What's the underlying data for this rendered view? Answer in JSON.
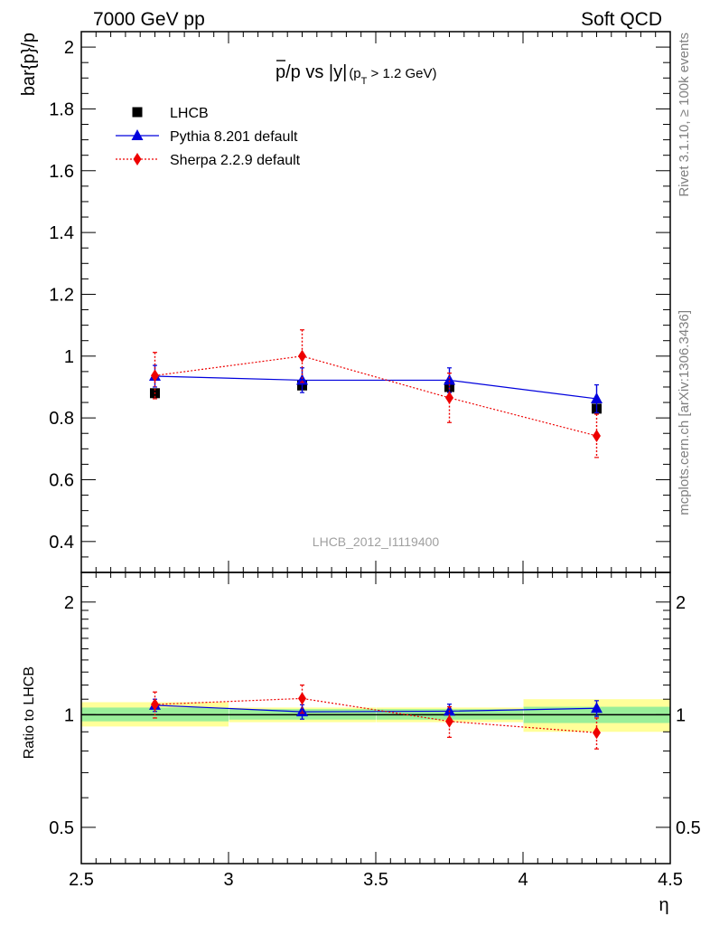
{
  "header": {
    "left": "7000 GeV pp",
    "right": "Soft QCD"
  },
  "side_labels": {
    "rivet": "Rivet 3.1.10, ≥ 100k events",
    "mcplots": "mcplots.cern.ch [arXiv:1306.3436]"
  },
  "watermark": "LHCB_2012_I1119400",
  "chart_data": [
    {
      "type": "scatter",
      "title": "p̅/p vs |y| (p_T > 1.2 GeV)",
      "title_parts": {
        "main": "p/p vs |y|",
        "sub_open": "(p",
        "sub_index": "T",
        "sub_close": " > 1.2 GeV)"
      },
      "ylabel": "bar{p}/p",
      "xlim": [
        2.5,
        4.5
      ],
      "ylim": [
        0.3,
        2.05
      ],
      "yticks": [
        0.4,
        0.6,
        0.8,
        1,
        1.2,
        1.4,
        1.6,
        1.8,
        2
      ],
      "ytick_labels": [
        "0.4",
        "0.6",
        "0.8",
        "1",
        "1.2",
        "1.4",
        "1.6",
        "1.8",
        "2"
      ],
      "legend_position": "top-left",
      "series": [
        {
          "name": "LHCB",
          "color": "#000000",
          "marker": "square",
          "x": [
            2.75,
            3.25,
            3.75,
            4.25
          ],
          "y": [
            0.88,
            0.905,
            0.9,
            0.83
          ],
          "yerr": [
            0.012,
            0.012,
            0.012,
            0.012
          ]
        },
        {
          "name": "Pythia 8.201 default",
          "color": "#0000dd",
          "marker": "triangle",
          "line": "solid",
          "x": [
            2.75,
            3.25,
            3.75,
            4.25
          ],
          "y": [
            0.935,
            0.922,
            0.922,
            0.862
          ],
          "yerr": [
            0.035,
            0.04,
            0.04,
            0.045
          ]
        },
        {
          "name": "Sherpa 2.2.9 default",
          "color": "#ee0000",
          "marker": "diamond",
          "line": "dotted",
          "x": [
            2.75,
            3.25,
            3.75,
            4.25
          ],
          "y": [
            0.937,
            1.0,
            0.865,
            0.742
          ],
          "yerr": [
            0.075,
            0.085,
            0.08,
            0.07
          ]
        }
      ]
    },
    {
      "type": "scatter",
      "ylabel": "Ratio to LHCB",
      "xlabel": "η",
      "xlim": [
        2.5,
        4.5
      ],
      "ylim": [
        0.4,
        2.4
      ],
      "log_y": true,
      "yticks": [
        0.5,
        1,
        2
      ],
      "ytick_labels": [
        "0.5",
        "1",
        "2"
      ],
      "xticks": [
        2.5,
        3,
        3.5,
        4,
        4.5
      ],
      "xtick_labels": [
        "2.5",
        "3",
        "3.5",
        "4",
        "4.5"
      ],
      "bands": [
        {
          "x0": 2.5,
          "x1": 3.0,
          "yellow": [
            0.93,
            1.08
          ],
          "green": [
            0.96,
            1.045
          ]
        },
        {
          "x0": 3.0,
          "x1": 3.5,
          "yellow": [
            0.955,
            1.045
          ],
          "green": [
            0.97,
            1.035
          ]
        },
        {
          "x0": 3.5,
          "x1": 4.0,
          "yellow": [
            0.955,
            1.045
          ],
          "green": [
            0.97,
            1.035
          ]
        },
        {
          "x0": 4.0,
          "x1": 4.5,
          "yellow": [
            0.9,
            1.1
          ],
          "green": [
            0.95,
            1.05
          ]
        }
      ],
      "series": [
        {
          "name": "Pythia 8.201 default",
          "color": "#0000dd",
          "marker": "triangle",
          "line": "solid",
          "x": [
            2.75,
            3.25,
            3.75,
            4.25
          ],
          "y": [
            1.06,
            1.018,
            1.022,
            1.04
          ],
          "yerr": [
            0.04,
            0.045,
            0.045,
            0.05
          ]
        },
        {
          "name": "Sherpa 2.2.9 default",
          "color": "#ee0000",
          "marker": "diamond",
          "line": "dotted",
          "x": [
            2.75,
            3.25,
            3.75,
            4.25
          ],
          "y": [
            1.065,
            1.105,
            0.96,
            0.895
          ],
          "yerr": [
            0.085,
            0.095,
            0.09,
            0.085
          ]
        }
      ]
    }
  ]
}
